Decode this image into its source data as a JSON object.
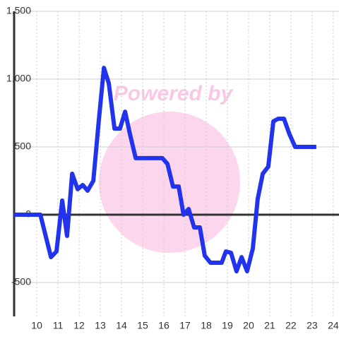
{
  "chart_data": {
    "type": "line",
    "watermark": "Powered by",
    "x": [
      8.93,
      10.17,
      10.67,
      10.93,
      11.2,
      11.43,
      11.67,
      11.93,
      12.17,
      12.4,
      12.67,
      12.93,
      13.17,
      13.4,
      13.67,
      13.93,
      14.17,
      14.4,
      14.67,
      14.93,
      15.93,
      16.17,
      16.43,
      16.7,
      16.93,
      17.17,
      17.43,
      17.7,
      17.93,
      18.2,
      18.73,
      18.93,
      19.17,
      19.43,
      19.67,
      19.93,
      20.2,
      20.43,
      20.67,
      20.93,
      21.17,
      21.4,
      21.67,
      21.93,
      22.2,
      23.2
    ],
    "series": [
      {
        "color": "#2233ee",
        "values": [
          0,
          0,
          -313,
          -271,
          104,
          -156,
          302,
          188,
          219,
          177,
          250,
          698,
          1083,
          969,
          635,
          635,
          760,
          594,
          417,
          417,
          417,
          375,
          208,
          208,
          0,
          42,
          -94,
          -94,
          -302,
          -354,
          -354,
          -271,
          -281,
          -417,
          -313,
          -417,
          -250,
          115,
          302,
          354,
          688,
          708,
          708,
          594,
          500,
          500
        ]
      }
    ],
    "xlim": [
      8.93,
      24.27
    ],
    "xticks": [
      10,
      11,
      12,
      13,
      14,
      15,
      16,
      17,
      18,
      19,
      20,
      21,
      22,
      23,
      24
    ],
    "ylim": [
      -750,
      1500
    ],
    "yticks": [
      -500,
      0,
      500,
      {
        "value": 1000,
        "label": "1,000"
      },
      {
        "value": 1500,
        "label": "1,500"
      }
    ],
    "grid": true
  }
}
